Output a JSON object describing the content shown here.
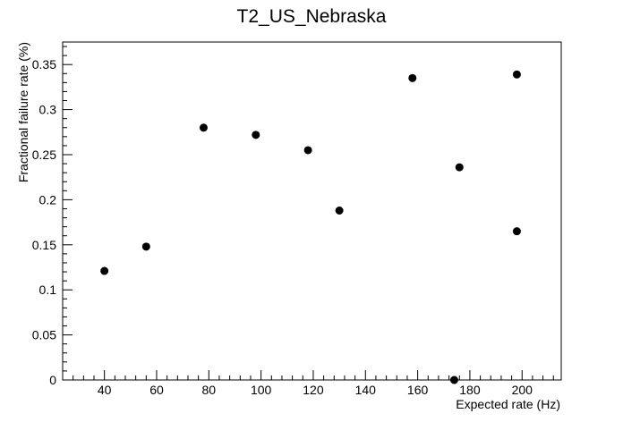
{
  "chart_data": {
    "type": "scatter",
    "title": "T2_US_Nebraska",
    "xlabel": "Expected rate (Hz)",
    "ylabel": "Fractional failure rate (%)",
    "xlim": [
      24,
      215
    ],
    "ylim": [
      0,
      0.375
    ],
    "x_ticks": [
      40,
      60,
      80,
      100,
      120,
      140,
      160,
      180,
      200
    ],
    "y_ticks": [
      0,
      0.05,
      0.1,
      0.15,
      0.2,
      0.25,
      0.3,
      0.35
    ],
    "x_tick_labels": [
      "40",
      "60",
      "80",
      "100",
      "120",
      "140",
      "160",
      "180",
      "200"
    ],
    "y_tick_labels": [
      "0",
      "0.05",
      "0.1",
      "0.15",
      "0.2",
      "0.25",
      "0.3",
      "0.35"
    ],
    "grid": false,
    "legend": "none",
    "marker_color": "#000000",
    "points": [
      {
        "x": 40,
        "y": 0.121
      },
      {
        "x": 56,
        "y": 0.148
      },
      {
        "x": 78,
        "y": 0.28
      },
      {
        "x": 98,
        "y": 0.272
      },
      {
        "x": 118,
        "y": 0.255
      },
      {
        "x": 130,
        "y": 0.188
      },
      {
        "x": 158,
        "y": 0.335
      },
      {
        "x": 174,
        "y": 0.0
      },
      {
        "x": 176,
        "y": 0.236
      },
      {
        "x": 198,
        "y": 0.339
      },
      {
        "x": 198,
        "y": 0.165
      }
    ]
  }
}
